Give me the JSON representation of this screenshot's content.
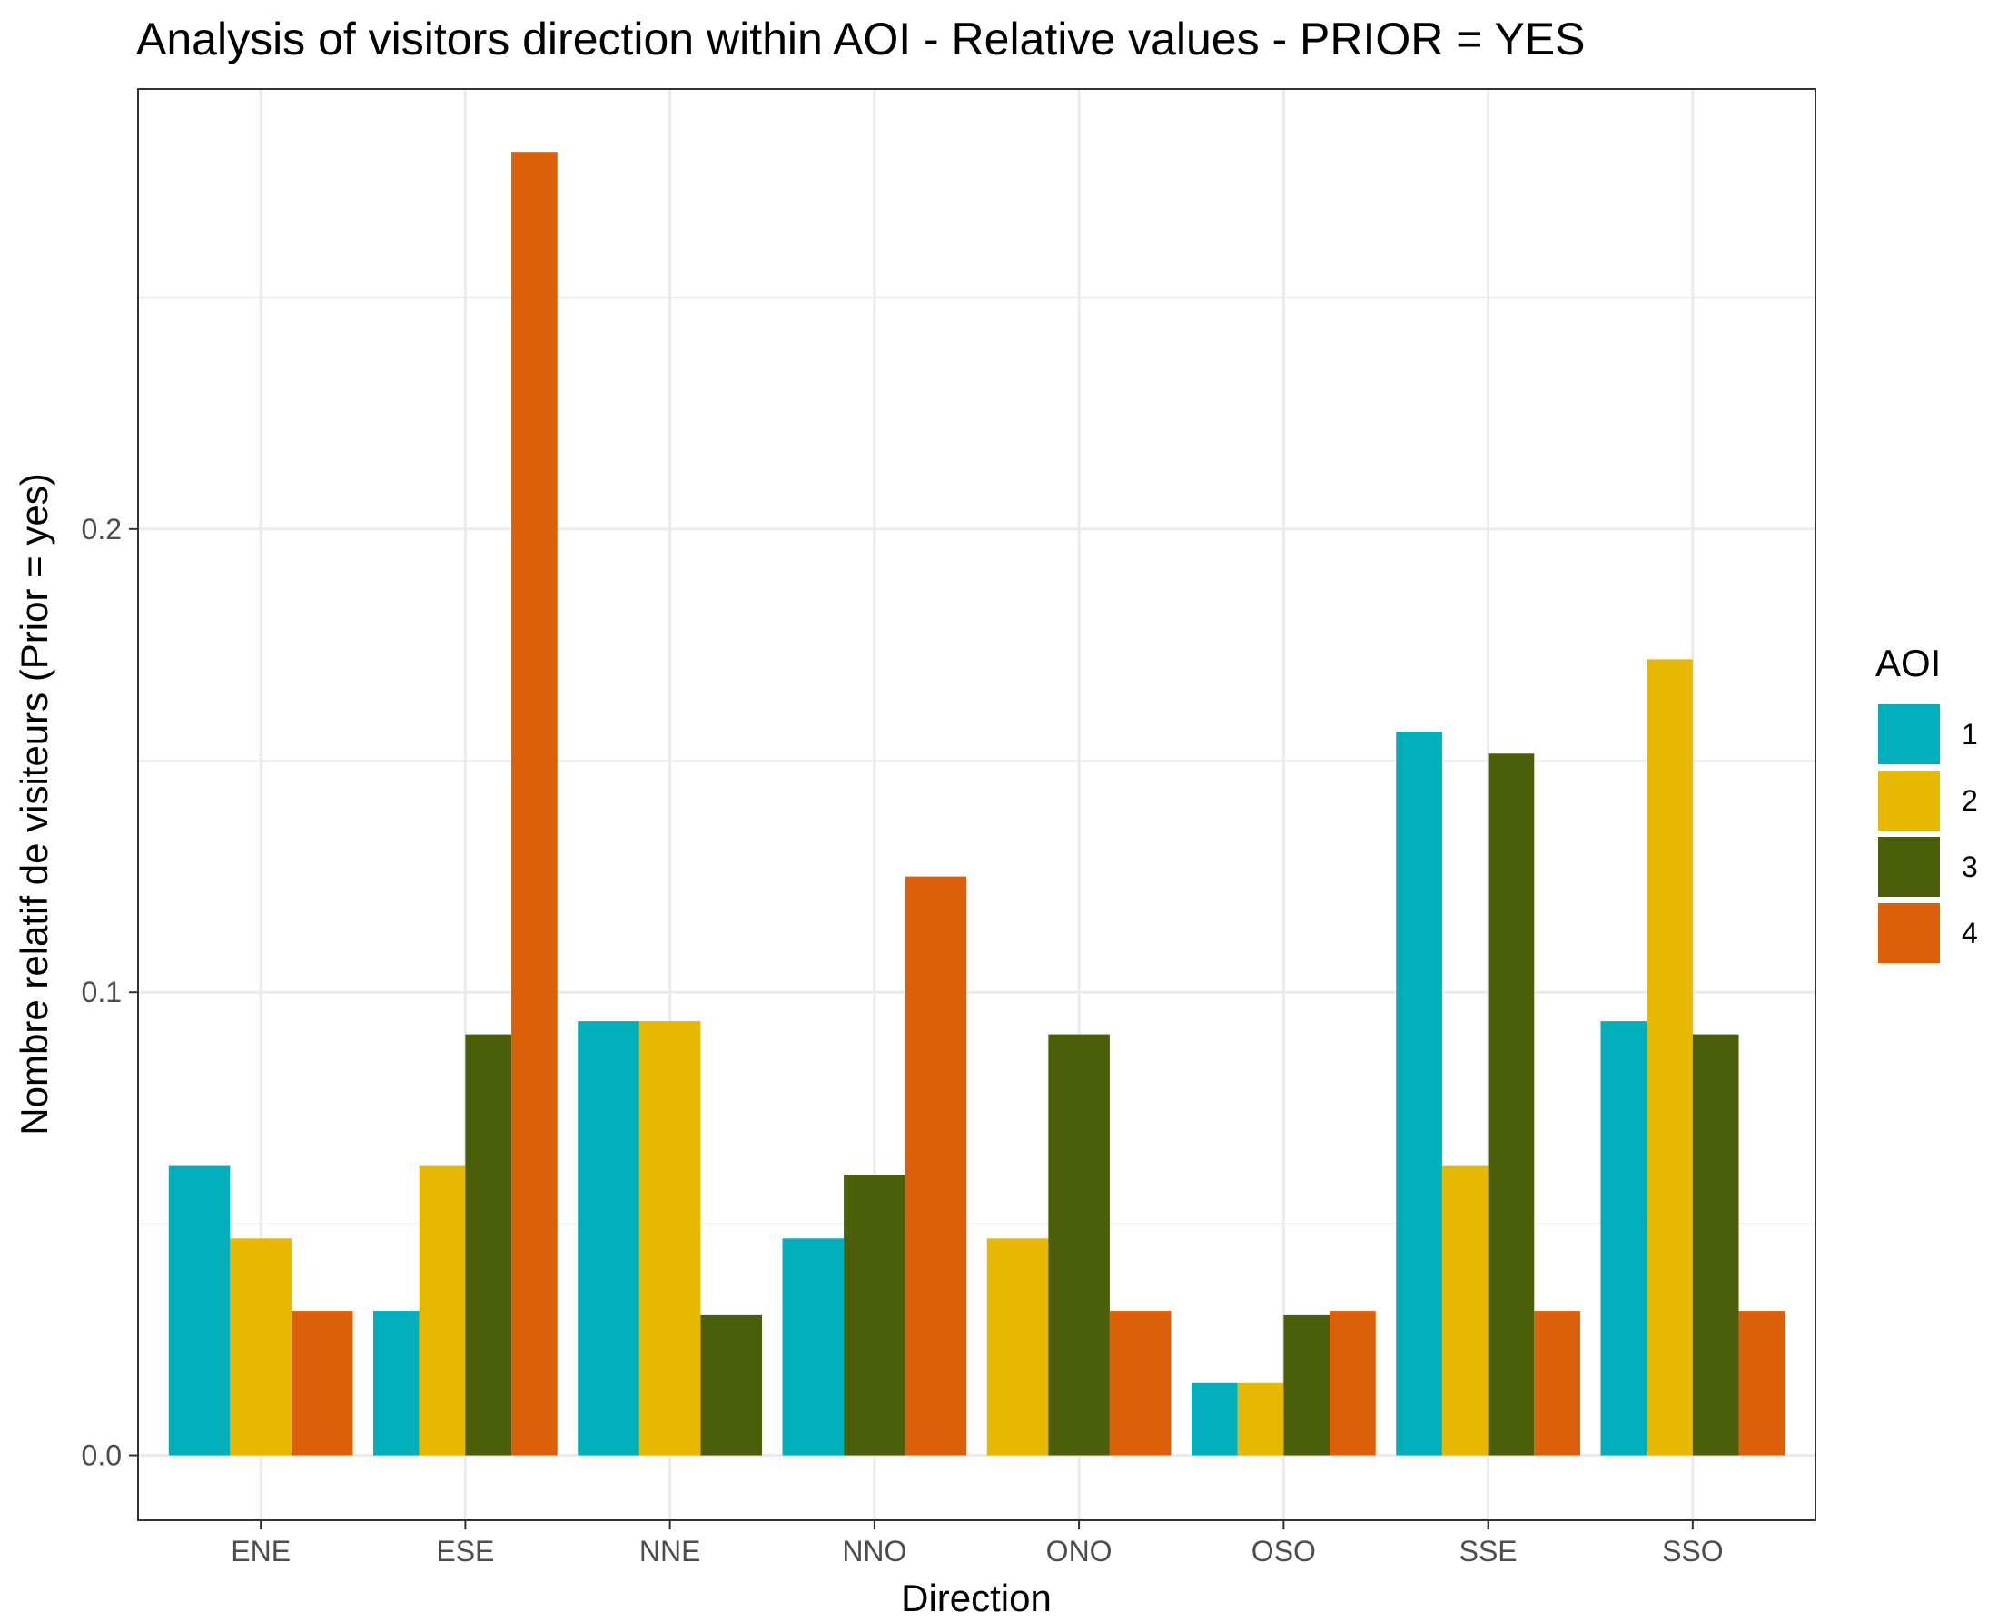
{
  "chart_data": {
    "type": "bar",
    "title": "Analysis of visitors direction within AOI - Relative values - PRIOR = YES",
    "xlabel": "Direction",
    "ylabel": "Nombre relatif de visiteurs (Prior = yes)",
    "categories": [
      "ENE",
      "ESE",
      "NNE",
      "NNO",
      "ONO",
      "OSO",
      "SSE",
      "SSO"
    ],
    "yticks": [
      0.0,
      0.1,
      0.2
    ],
    "ytick_labels": [
      "0.0",
      "0.1",
      "0.2"
    ],
    "ylim": [
      -0.014,
      0.295
    ],
    "grid": true,
    "legend_title": "AOI",
    "legend_position": "right",
    "series": [
      {
        "name": "1",
        "color": "#00AFBB",
        "values": [
          0.0625,
          0.03125,
          0.09375,
          0.046875,
          null,
          0.015625,
          0.15625,
          0.09375
        ]
      },
      {
        "name": "2",
        "color": "#E7B800",
        "values": [
          0.046875,
          0.0625,
          0.09375,
          null,
          0.046875,
          0.015625,
          0.0625,
          0.171875
        ]
      },
      {
        "name": "3",
        "color": "#4B5E0A",
        "values": [
          null,
          0.090909,
          0.030303,
          0.060606,
          0.090909,
          0.030303,
          0.151515,
          0.090909
        ]
      },
      {
        "name": "4",
        "color": "#DC5F09",
        "values": [
          0.03125,
          0.28125,
          null,
          0.125,
          0.03125,
          0.03125,
          0.03125,
          0.03125
        ]
      }
    ]
  }
}
